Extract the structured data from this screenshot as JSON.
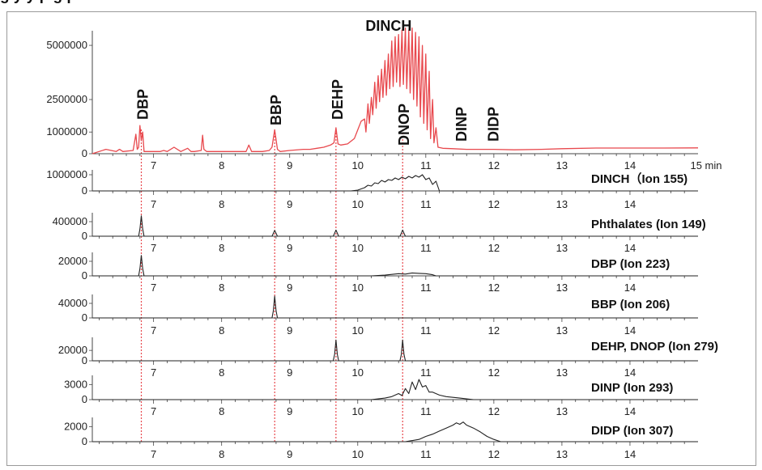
{
  "heading_fragment": "g                                                    y  y  p                   g     p",
  "chart_data": {
    "type": "line",
    "x_unit_label": "15 min",
    "x_ticks": [
      7,
      8,
      9,
      10,
      11,
      12,
      13,
      14
    ],
    "xlim": [
      6.1,
      15.0
    ],
    "colors": {
      "tic": "#e8484d",
      "sic": "#222222",
      "marker": "#e8484d",
      "axis": "#444444"
    },
    "marker_lines": [
      6.82,
      8.78,
      9.68,
      10.66
    ],
    "compound_labels": [
      {
        "text": "DBP",
        "x": 6.82
      },
      {
        "text": "BBP",
        "x": 8.78
      },
      {
        "text": "DEHP",
        "x": 9.68
      },
      {
        "text": "DINCH",
        "x": 10.62
      },
      {
        "text": "DNOP",
        "x": 10.66
      },
      {
        "text": "DINP",
        "x": 11.5
      },
      {
        "text": "DIDP",
        "x": 11.97
      }
    ],
    "panels": [
      {
        "name": "TIC",
        "ion_label": "",
        "yticks": [
          0,
          1000000,
          2500000,
          5000000
        ],
        "ytick_labels": [
          "0",
          "1000000",
          "2500000",
          "5000000"
        ],
        "ymax": 5600000,
        "x": [
          6.1,
          6.3,
          6.45,
          6.5,
          6.55,
          6.7,
          6.74,
          6.76,
          6.78,
          6.8,
          6.82,
          6.84,
          6.86,
          6.9,
          7.0,
          7.1,
          7.15,
          7.2,
          7.3,
          7.4,
          7.5,
          7.55,
          7.6,
          7.7,
          7.72,
          7.74,
          7.78,
          7.9,
          8.0,
          8.2,
          8.36,
          8.4,
          8.44,
          8.6,
          8.7,
          8.74,
          8.78,
          8.82,
          8.86,
          9.0,
          9.2,
          9.3,
          9.4,
          9.5,
          9.6,
          9.65,
          9.68,
          9.71,
          9.75,
          9.85,
          9.95,
          10.0,
          10.05,
          10.1,
          10.12,
          10.15,
          10.17,
          10.2,
          10.22,
          10.25,
          10.27,
          10.3,
          10.32,
          10.35,
          10.37,
          10.4,
          10.42,
          10.45,
          10.47,
          10.5,
          10.52,
          10.55,
          10.57,
          10.6,
          10.62,
          10.65,
          10.67,
          10.7,
          10.72,
          10.75,
          10.77,
          10.8,
          10.82,
          10.85,
          10.87,
          10.9,
          10.92,
          10.95,
          10.97,
          11.0,
          11.02,
          11.05,
          11.07,
          11.1,
          11.12,
          11.15,
          11.18,
          11.25,
          11.4,
          11.6,
          11.8,
          12.0,
          12.3,
          12.7,
          13.0,
          13.5,
          14.0,
          14.5,
          15.0
        ],
        "y": [
          0,
          200000,
          100000,
          200000,
          100000,
          150000,
          900000,
          200000,
          300000,
          1300000,
          600000,
          1000000,
          100000,
          100000,
          100000,
          100000,
          150000,
          100000,
          300000,
          100000,
          250000,
          100000,
          100000,
          150000,
          850000,
          200000,
          100000,
          100000,
          100000,
          100000,
          100000,
          400000,
          100000,
          100000,
          150000,
          300000,
          1100000,
          200000,
          100000,
          150000,
          200000,
          200000,
          250000,
          300000,
          400000,
          500000,
          1200000,
          450000,
          400000,
          450000,
          700000,
          1100000,
          1500000,
          1600000,
          1000000,
          2300000,
          1400000,
          2600000,
          1800000,
          3300000,
          2100000,
          3600000,
          2400000,
          3900000,
          2600000,
          4300000,
          2700000,
          4600000,
          3000000,
          5200000,
          3100000,
          5400000,
          3300000,
          5500000,
          3100000,
          5700000,
          3200000,
          5800000,
          3000000,
          5700000,
          2800000,
          5800000,
          2500000,
          5600000,
          2200000,
          5400000,
          1700000,
          5000000,
          1400000,
          4600000,
          1100000,
          3800000,
          700000,
          2500000,
          500000,
          1200000,
          300000,
          250000,
          230000,
          200000,
          200000,
          200000,
          180000,
          200000,
          230000,
          260000,
          260000,
          260000,
          270000
        ]
      },
      {
        "name": "DINCH",
        "ion_label": "DINCH（Ion 155)",
        "yticks": [
          0,
          1000000
        ],
        "ytick_labels": [
          "0",
          "1000000"
        ],
        "ymax": 1200000,
        "x": [
          6.1,
          9.9,
          10.0,
          10.1,
          10.15,
          10.2,
          10.25,
          10.3,
          10.35,
          10.4,
          10.45,
          10.5,
          10.55,
          10.6,
          10.65,
          10.7,
          10.75,
          10.8,
          10.85,
          10.9,
          10.95,
          11.0,
          11.05,
          11.1,
          11.15,
          11.2,
          15.0
        ],
        "y": [
          0,
          0,
          50000,
          200000,
          350000,
          300000,
          500000,
          450000,
          650000,
          550000,
          700000,
          650000,
          800000,
          700000,
          850000,
          750000,
          900000,
          800000,
          950000,
          850000,
          1000000,
          700000,
          800000,
          400000,
          600000,
          0,
          0
        ]
      },
      {
        "name": "Phthalates",
        "ion_label": "Phthalates (Ion 149)",
        "yticks": [
          0,
          400000
        ],
        "ytick_labels": [
          "0",
          "400000"
        ],
        "ymax": 600000,
        "x": [
          6.1,
          6.78,
          6.8,
          6.82,
          6.84,
          6.86,
          8.74,
          8.76,
          8.78,
          8.8,
          8.82,
          9.64,
          9.66,
          9.68,
          9.7,
          9.72,
          10.62,
          10.64,
          10.66,
          10.68,
          10.7,
          15.0
        ],
        "y": [
          0,
          0,
          200000,
          560000,
          200000,
          0,
          0,
          80000,
          160000,
          80000,
          0,
          0,
          80000,
          170000,
          80000,
          0,
          0,
          80000,
          170000,
          80000,
          0,
          0
        ]
      },
      {
        "name": "DBP",
        "ion_label": "DBP (Ion 223)",
        "yticks": [
          0,
          20000
        ],
        "ytick_labels": [
          "0",
          "20000"
        ],
        "ymax": 30000,
        "x": [
          6.1,
          6.78,
          6.8,
          6.82,
          6.84,
          6.86,
          10.2,
          10.4,
          10.5,
          10.6,
          10.7,
          10.8,
          10.9,
          11.0,
          11.1,
          11.15,
          15.0
        ],
        "y": [
          0,
          0,
          10000,
          28000,
          10000,
          0,
          0,
          1000,
          2000,
          3000,
          2500,
          4000,
          3500,
          3000,
          1500,
          0,
          0
        ]
      },
      {
        "name": "BBP",
        "ion_label": "BBP (Ion 206)",
        "yticks": [
          0,
          40000
        ],
        "ytick_labels": [
          "0",
          "40000"
        ],
        "ymax": 60000,
        "x": [
          6.1,
          8.74,
          8.76,
          8.78,
          8.8,
          8.82,
          15.0
        ],
        "y": [
          0,
          0,
          20000,
          60000,
          20000,
          0,
          0
        ]
      },
      {
        "name": "DEHP_DNOP",
        "ion_label": "DEHP, DNOP (Ion 279)",
        "yticks": [
          0,
          20000
        ],
        "ytick_labels": [
          "0",
          "20000"
        ],
        "ymax": 42000,
        "x": [
          6.1,
          9.64,
          9.66,
          9.68,
          9.7,
          9.72,
          10.62,
          10.64,
          10.66,
          10.68,
          10.7,
          15.0
        ],
        "y": [
          0,
          0,
          12000,
          40000,
          12000,
          0,
          0,
          12000,
          40000,
          12000,
          0,
          0
        ]
      },
      {
        "name": "DINP",
        "ion_label": "DINP (Ion 293)",
        "yticks": [
          0,
          3000
        ],
        "ytick_labels": [
          "0",
          "3000"
        ],
        "ymax": 4500,
        "x": [
          6.1,
          10.2,
          10.4,
          10.5,
          10.6,
          10.65,
          10.7,
          10.75,
          10.8,
          10.85,
          10.9,
          10.95,
          11.0,
          11.05,
          11.1,
          11.2,
          11.3,
          11.5,
          11.7,
          15.0
        ],
        "y": [
          0,
          0,
          300,
          600,
          1200,
          800,
          2200,
          1200,
          3500,
          2000,
          4000,
          2500,
          2800,
          1500,
          1500,
          900,
          600,
          300,
          0,
          0
        ]
      },
      {
        "name": "DIDP",
        "ion_label": "DIDP (Ion 307)",
        "yticks": [
          0,
          2000
        ],
        "ytick_labels": [
          "0",
          "2000"
        ],
        "ymax": 3000,
        "x": [
          6.1,
          10.7,
          10.9,
          11.0,
          11.1,
          11.2,
          11.3,
          11.4,
          11.45,
          11.5,
          11.55,
          11.6,
          11.7,
          11.8,
          11.9,
          12.0,
          12.1,
          15.0
        ],
        "y": [
          0,
          0,
          300,
          700,
          1000,
          1400,
          1800,
          2200,
          2500,
          2300,
          2600,
          2200,
          1800,
          1300,
          700,
          300,
          0,
          0
        ]
      }
    ]
  }
}
